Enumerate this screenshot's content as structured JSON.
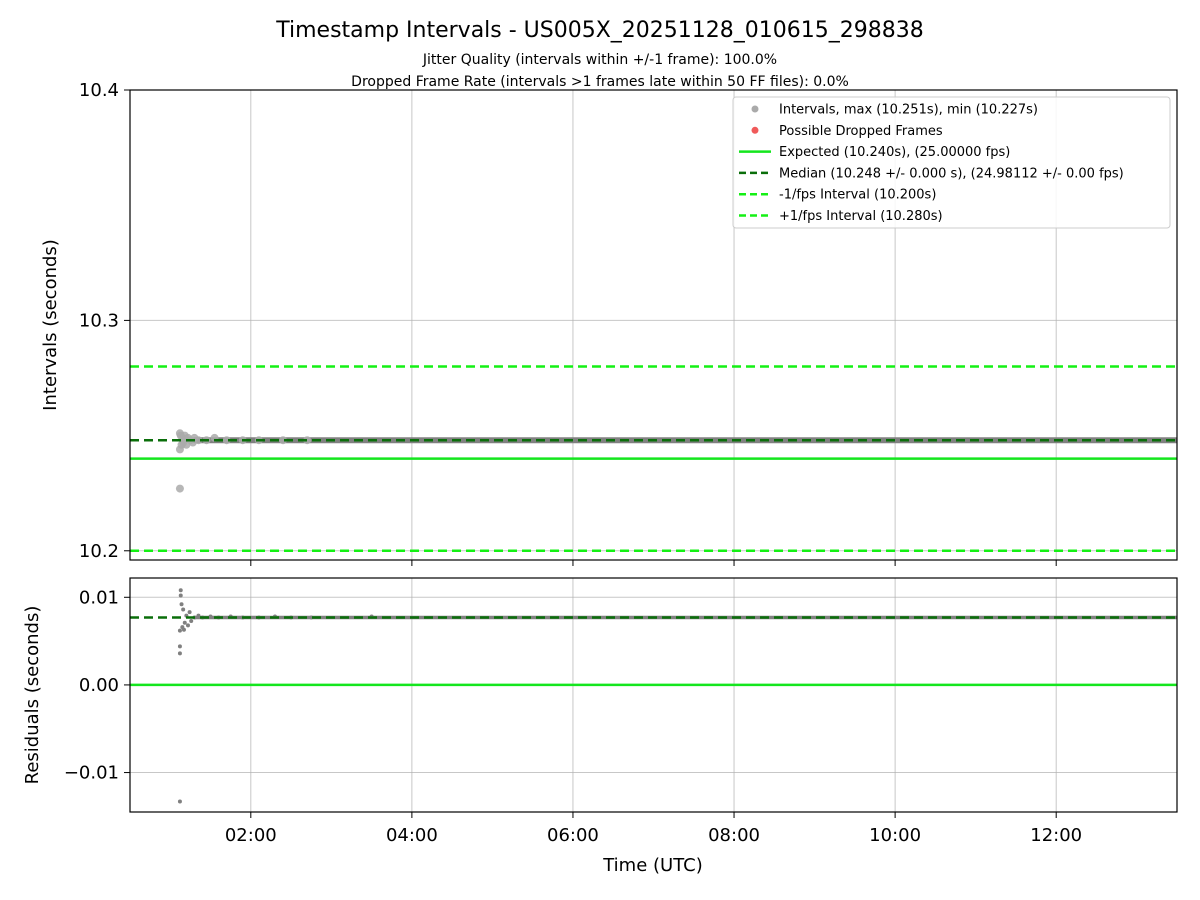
{
  "colors": {
    "expected": "#14e61e",
    "median": "#0a6e0a",
    "fps_bounds": "#14f014",
    "points": "#808080",
    "intervals_marker": "#aaaaaa",
    "dropped": "#f05a5a",
    "grid": "#b0b0b0"
  },
  "chart_data": {
    "type": "scatter",
    "title": "Timestamp Intervals - US005X_20251128_010615_298838",
    "subtitle_1": "Jitter Quality (intervals within +/-1 frame): 100.0%",
    "subtitle_2": "Dropped Frame Rate (intervals >1 frames late within 50 FF files): 0.0%",
    "xlabel": "Time (UTC)",
    "xlim_hours": [
      0.5,
      13.5
    ],
    "xticks": [
      {
        "value": 2,
        "label": "02:00"
      },
      {
        "value": 4,
        "label": "04:00"
      },
      {
        "value": 6,
        "label": "06:00"
      },
      {
        "value": 8,
        "label": "08:00"
      },
      {
        "value": 10,
        "label": "10:00"
      },
      {
        "value": 12,
        "label": "12:00"
      }
    ],
    "top_panel": {
      "ylabel": "Intervals (seconds)",
      "ylim": [
        10.196,
        10.4
      ],
      "yticks": [
        {
          "value": 10.2,
          "label": "10.2"
        },
        {
          "value": 10.3,
          "label": "10.3"
        },
        {
          "value": 10.4,
          "label": "10.4"
        }
      ],
      "lines": {
        "expected": 10.24,
        "median": 10.248,
        "minus_fps": 10.2,
        "plus_fps": 10.28
      },
      "intervals_steady": 10.248,
      "points": [
        {
          "x": 1.12,
          "y": 10.227
        },
        {
          "x": 1.12,
          "y": 10.244
        },
        {
          "x": 1.12,
          "y": 10.251
        },
        {
          "x": 1.13,
          "y": 10.25
        },
        {
          "x": 1.14,
          "y": 10.246
        },
        {
          "x": 1.15,
          "y": 10.249
        },
        {
          "x": 1.16,
          "y": 10.247
        },
        {
          "x": 1.18,
          "y": 10.25
        },
        {
          "x": 1.2,
          "y": 10.246
        },
        {
          "x": 1.22,
          "y": 10.249
        },
        {
          "x": 1.25,
          "y": 10.248
        },
        {
          "x": 1.28,
          "y": 10.247
        },
        {
          "x": 1.3,
          "y": 10.249
        },
        {
          "x": 1.35,
          "y": 10.248
        },
        {
          "x": 1.45,
          "y": 10.248
        },
        {
          "x": 1.55,
          "y": 10.249
        },
        {
          "x": 1.7,
          "y": 10.248
        },
        {
          "x": 1.9,
          "y": 10.248
        },
        {
          "x": 2.1,
          "y": 10.248
        },
        {
          "x": 2.4,
          "y": 10.248
        },
        {
          "x": 2.7,
          "y": 10.248
        }
      ]
    },
    "bottom_panel": {
      "ylabel": "Residuals (seconds)",
      "ylim": [
        -0.0145,
        0.0122
      ],
      "yticks": [
        {
          "value": 0.01,
          "label": "0.01"
        },
        {
          "value": 0.0,
          "label": "0.00"
        },
        {
          "value": -0.01,
          "label": "−0.01"
        }
      ],
      "lines": {
        "expected": 0.0,
        "median": 0.0077
      },
      "residual_steady": 0.0077,
      "points": [
        {
          "x": 1.12,
          "y": -0.0133
        },
        {
          "x": 1.12,
          "y": 0.0036
        },
        {
          "x": 1.12,
          "y": 0.0044
        },
        {
          "x": 1.12,
          "y": 0.0062
        },
        {
          "x": 1.13,
          "y": 0.0108
        },
        {
          "x": 1.13,
          "y": 0.0102
        },
        {
          "x": 1.14,
          "y": 0.0092
        },
        {
          "x": 1.15,
          "y": 0.0066
        },
        {
          "x": 1.16,
          "y": 0.0086
        },
        {
          "x": 1.17,
          "y": 0.0063
        },
        {
          "x": 1.18,
          "y": 0.0071
        },
        {
          "x": 1.2,
          "y": 0.0079
        },
        {
          "x": 1.22,
          "y": 0.0068
        },
        {
          "x": 1.24,
          "y": 0.0083
        },
        {
          "x": 1.26,
          "y": 0.0073
        },
        {
          "x": 1.3,
          "y": 0.0077
        },
        {
          "x": 1.35,
          "y": 0.0079
        },
        {
          "x": 1.4,
          "y": 0.0077
        },
        {
          "x": 1.5,
          "y": 0.0078
        },
        {
          "x": 1.6,
          "y": 0.0077
        },
        {
          "x": 1.75,
          "y": 0.0078
        },
        {
          "x": 1.9,
          "y": 0.0077
        },
        {
          "x": 2.1,
          "y": 0.0077
        },
        {
          "x": 2.3,
          "y": 0.0078
        },
        {
          "x": 2.5,
          "y": 0.0077
        },
        {
          "x": 2.75,
          "y": 0.0077
        },
        {
          "x": 3.5,
          "y": 0.0078
        }
      ]
    },
    "legend": {
      "placement": "upper-right",
      "entries": [
        {
          "key": "intervals",
          "label": "Intervals, max (10.251s), min (10.227s)"
        },
        {
          "key": "dropped",
          "label": "Possible Dropped Frames"
        },
        {
          "key": "expected",
          "label": "Expected (10.240s), (25.00000 fps)"
        },
        {
          "key": "median",
          "label": "Median (10.248 +/- 0.000 s), (24.98112 +/- 0.00 fps)"
        },
        {
          "key": "minus",
          "label": "-1/fps Interval (10.200s)"
        },
        {
          "key": "plus",
          "label": "+1/fps Interval (10.280s)"
        }
      ]
    }
  }
}
